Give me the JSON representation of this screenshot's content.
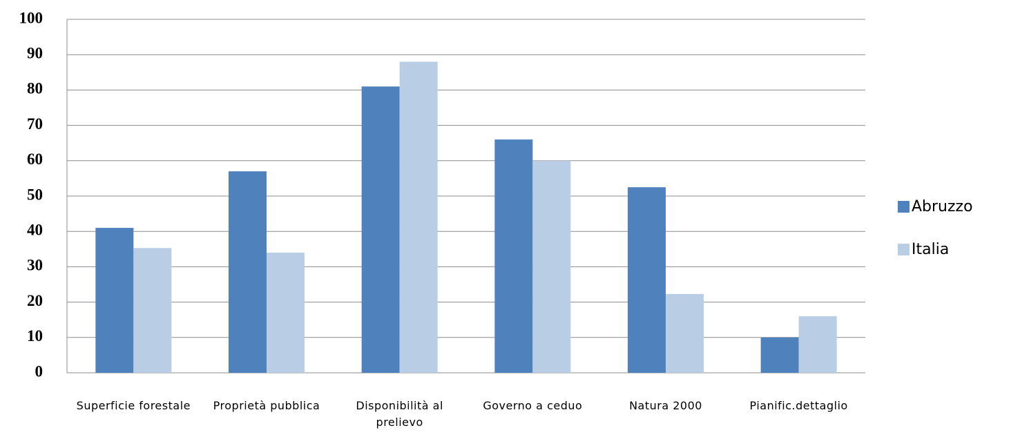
{
  "chart_data": {
    "type": "bar",
    "categories": [
      "Superficie forestale",
      "Proprietà pubblica",
      "Disponibilità al prelievo",
      "Governo a ceduo",
      "Natura 2000",
      "Pianific.dettaglio"
    ],
    "series": [
      {
        "name": "Abruzzo",
        "color": "#4f81bd",
        "values": [
          41,
          57,
          81,
          66,
          52.5,
          10
        ]
      },
      {
        "name": "Italia",
        "color": "#b9cde5",
        "values": [
          35.3,
          34,
          88,
          60,
          22.3,
          16
        ]
      }
    ],
    "ylim": [
      0,
      100
    ],
    "yticks": [
      0,
      10,
      20,
      30,
      40,
      50,
      60,
      70,
      80,
      90,
      100
    ],
    "grid": true,
    "legend": "right"
  }
}
